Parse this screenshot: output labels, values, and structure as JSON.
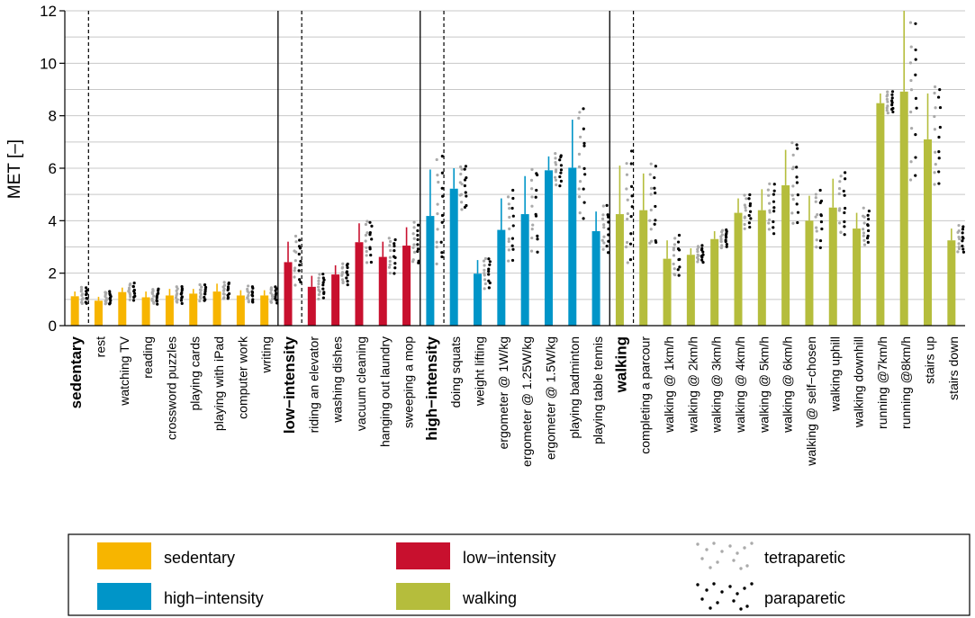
{
  "chart_data": {
    "type": "bar",
    "ylabel": "MET [–]",
    "ylim": [
      0,
      12
    ],
    "yticks": [
      0,
      2,
      4,
      6,
      8,
      10,
      12
    ],
    "grid": true,
    "legend_position": "bottom",
    "groups": [
      {
        "name": "sedentary",
        "color": "#F7B500",
        "summary": {
          "value": 1.12,
          "err": 1.3
        },
        "categories": [
          {
            "label": "rest",
            "value": 0.95,
            "err": 1.1
          },
          {
            "label": "watching TV",
            "value": 1.28,
            "err": 1.45
          },
          {
            "label": "reading",
            "value": 1.08,
            "err": 1.3
          },
          {
            "label": "crossword puzzles",
            "value": 1.15,
            "err": 1.4
          },
          {
            "label": "playing cards",
            "value": 1.22,
            "err": 1.4
          },
          {
            "label": "playing with iPad",
            "value": 1.3,
            "err": 1.6
          },
          {
            "label": "computer work",
            "value": 1.15,
            "err": 1.35
          },
          {
            "label": "writing",
            "value": 1.15,
            "err": 1.35
          }
        ]
      },
      {
        "name": "low−intensity",
        "color": "#C8102E",
        "summary": {
          "value": 2.42,
          "err": 3.2
        },
        "categories": [
          {
            "label": "riding an elevator",
            "value": 1.48,
            "err": 1.9
          },
          {
            "label": "washing dishes",
            "value": 1.95,
            "err": 2.3
          },
          {
            "label": "vacuum cleaning",
            "value": 3.18,
            "err": 3.9
          },
          {
            "label": "hanging out laundry",
            "value": 2.62,
            "err": 3.2
          },
          {
            "label": "sweeping a mop",
            "value": 3.05,
            "err": 3.75
          }
        ]
      },
      {
        "name": "high−intensity",
        "color": "#0095C8",
        "summary": {
          "value": 4.18,
          "err": 5.95
        },
        "categories": [
          {
            "label": "doing squats",
            "value": 5.22,
            "err": 6.0
          },
          {
            "label": "weight lifting",
            "value": 1.98,
            "err": 2.5
          },
          {
            "label": "ergometer @ 1W/kg",
            "value": 3.65,
            "err": 4.85
          },
          {
            "label": "ergometer @ 1.25W/kg",
            "value": 4.25,
            "err": 5.7
          },
          {
            "label": "ergometer @ 1.5W/kg",
            "value": 5.92,
            "err": 6.45
          },
          {
            "label": "playing badminton",
            "value": 6.02,
            "err": 7.85
          },
          {
            "label": "playing table tennis",
            "value": 3.6,
            "err": 4.35
          }
        ]
      },
      {
        "name": "walking",
        "color": "#B5BD3C",
        "summary": {
          "value": 4.25,
          "err": 6.1
        },
        "categories": [
          {
            "label": "completing a parcour",
            "value": 4.4,
            "err": 5.8
          },
          {
            "label": "walking @ 1km/h",
            "value": 2.55,
            "err": 3.25
          },
          {
            "label": "walking @ 2km/h",
            "value": 2.7,
            "err": 2.95
          },
          {
            "label": "walking @ 3km/h",
            "value": 3.3,
            "err": 3.6
          },
          {
            "label": "walking @ 4km/h",
            "value": 4.3,
            "err": 4.85
          },
          {
            "label": "walking @ 5km/h",
            "value": 4.4,
            "err": 5.2
          },
          {
            "label": "walking @ 6km/h",
            "value": 5.35,
            "err": 6.7
          },
          {
            "label": "walking @ self−chosen",
            "value": 4.0,
            "err": 4.95
          },
          {
            "label": "walking uphill",
            "value": 4.5,
            "err": 5.6
          },
          {
            "label": "walking downhill",
            "value": 3.7,
            "err": 4.3
          },
          {
            "label": "running @7km/h",
            "value": 8.48,
            "err": 8.85
          },
          {
            "label": "running @8km/h",
            "value": 8.92,
            "err": 12.0
          },
          {
            "label": "stairs up",
            "value": 7.1,
            "err": 8.85
          },
          {
            "label": "stairs down",
            "value": 3.25,
            "err": 3.7
          }
        ]
      }
    ],
    "legend": [
      {
        "label": "sedentary",
        "kind": "box",
        "color": "#F7B500"
      },
      {
        "label": "low−intensity",
        "kind": "box",
        "color": "#C8102E"
      },
      {
        "label": "tetraparetic",
        "kind": "dots",
        "color": "#AAAAAA"
      },
      {
        "label": "high−intensity",
        "kind": "box",
        "color": "#0095C8"
      },
      {
        "label": "walking",
        "kind": "box",
        "color": "#B5BD3C"
      },
      {
        "label": "paraparetic",
        "kind": "dots",
        "color": "#000000"
      }
    ]
  }
}
